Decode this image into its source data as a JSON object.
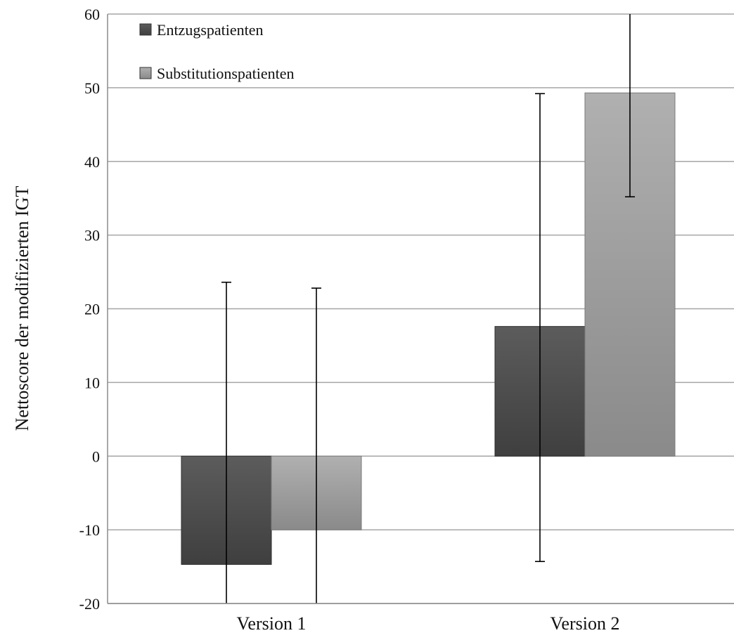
{
  "chart_data": {
    "type": "bar",
    "title": "",
    "xlabel": "",
    "ylabel": "Nettoscore der modifizierten IGT",
    "ylim": [
      -20,
      60
    ],
    "yticks": [
      60,
      50,
      40,
      30,
      20,
      10,
      0,
      -10,
      -20
    ],
    "ytick_labels": [
      "60",
      "50",
      "40",
      "30",
      "20",
      "10",
      "0",
      "-10",
      "-20"
    ],
    "grid": true,
    "legend_position": "top-left",
    "categories": [
      "Version 1",
      "Version 2"
    ],
    "series": [
      {
        "name": "Entzugspatienten",
        "values": [
          -14.7,
          17.6
        ],
        "error_upper": [
          23.6,
          49.2
        ],
        "error_lower": [
          -20,
          -14.3
        ],
        "color_top": "#5c5c5c",
        "color_bottom": "#3f3f3f"
      },
      {
        "name": "Substitutionspatienten",
        "values": [
          -10.0,
          49.3
        ],
        "error_upper": [
          22.8,
          60
        ],
        "error_lower": [
          -20,
          35.2
        ],
        "color_top": "#b0b0b0",
        "color_bottom": "#8a8a8a"
      }
    ]
  }
}
